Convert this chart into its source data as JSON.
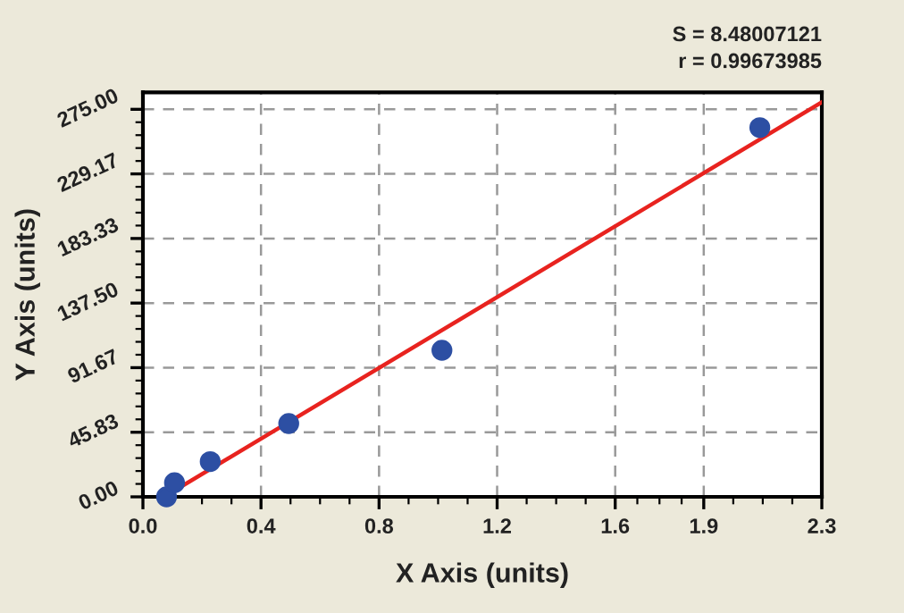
{
  "chart_data": {
    "type": "scatter",
    "xlabel": "X Axis (units)",
    "ylabel": "Y Axis (units)",
    "annotations": [
      "S = 8.48007121",
      "r = 0.99673985"
    ],
    "series": [
      {
        "color": "#2d4fa3",
        "marker": "circle",
        "x": [
          0.08,
          0.107,
          0.228,
          0.494,
          1.013,
          2.09
        ],
        "values": [
          0,
          10,
          25,
          52,
          104,
          262
        ]
      },
      {
        "type": "line",
        "color": "#e8231f",
        "marker": "none",
        "line_style": "solid",
        "x": [
          0.072,
          2.3
        ],
        "values": [
          0,
          280
        ]
      }
    ],
    "xlim": [
      0,
      2.3
    ],
    "ylim": [
      0,
      287
    ],
    "xticks": [
      {
        "value": 0,
        "label": "0.0"
      },
      {
        "value": 0.4,
        "label": "0.4"
      },
      {
        "value": 0.8,
        "label": "0.8"
      },
      {
        "value": 1.2,
        "label": "1.2"
      },
      {
        "value": 1.6,
        "label": "1.6"
      },
      {
        "value": 1.9,
        "label": "1.9"
      },
      {
        "value": 2.3,
        "label": "2.3"
      }
    ],
    "yticks": [
      {
        "value": 0,
        "label": "0.00"
      },
      {
        "value": 45.83,
        "label": "45.83"
      },
      {
        "value": 91.67,
        "label": "91.67"
      },
      {
        "value": 137.5,
        "label": "137.50"
      },
      {
        "value": 183.33,
        "label": "183.33"
      },
      {
        "value": 229.17,
        "label": "229.17"
      },
      {
        "value": 275,
        "label": "275.00"
      }
    ],
    "grid": true
  }
}
